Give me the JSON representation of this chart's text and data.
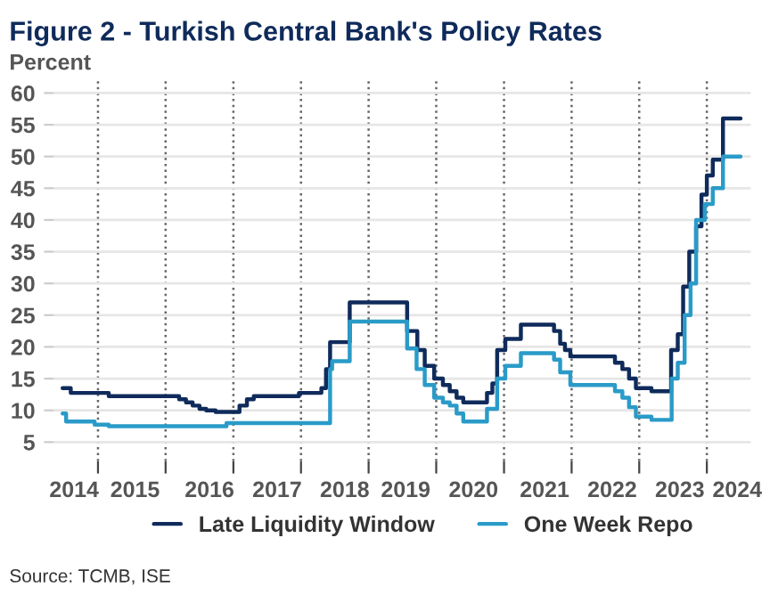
{
  "chart_data": {
    "type": "step",
    "title": "Figure 2 - Turkish Central Bank's Policy Rates",
    "subtitle": "Percent",
    "xlim": [
      "2014-05-08",
      "2024-08-25"
    ],
    "ylim": [
      2,
      62
    ],
    "yticks": [
      5,
      10,
      15,
      20,
      25,
      30,
      35,
      40,
      45,
      50,
      55,
      60
    ],
    "xticks": [
      {
        "value": "2015-01-01",
        "label": null
      },
      {
        "value": "2016-01-01",
        "label": null
      },
      {
        "value": "2017-01-01",
        "label": null
      },
      {
        "value": "2018-01-01",
        "label": null
      },
      {
        "value": "2019-01-01",
        "label": null
      },
      {
        "value": "2020-01-01",
        "label": null
      },
      {
        "value": "2021-01-01",
        "label": null
      },
      {
        "value": "2022-01-01",
        "label": null
      },
      {
        "value": "2023-01-01",
        "label": null
      },
      {
        "value": "2024-01-01",
        "label": null
      },
      {
        "value": "2014-08-25",
        "label": "2014"
      },
      {
        "value": "2015-07-20",
        "label": "2015"
      },
      {
        "value": "2016-08-25",
        "label": "2016"
      },
      {
        "value": "2017-08-25",
        "label": "2017"
      },
      {
        "value": "2018-08-25",
        "label": "2018"
      },
      {
        "value": "2019-07-20",
        "label": "2019"
      },
      {
        "value": "2020-07-20",
        "label": "2020"
      },
      {
        "value": "2021-08-08",
        "label": "2021"
      },
      {
        "value": "2022-08-08",
        "label": "2022"
      },
      {
        "value": "2023-08-08",
        "label": "2023"
      },
      {
        "value": "2024-06-13",
        "label": "2024"
      }
    ],
    "grid": true,
    "legend": "bottom",
    "line_style": "solid",
    "marker": "none",
    "series": [
      {
        "name": "Late Liquidity Window",
        "color": "#0f2b5b",
        "x": [
          "2014-06-24",
          "2014-08-07",
          "2015-02-28",
          "2016-03-14",
          "2016-04-20",
          "2016-05-26",
          "2016-07-02",
          "2016-08-07",
          "2016-09-27",
          "2017-02-03",
          "2017-03-15",
          "2017-04-21",
          "2017-12-21",
          "2018-04-21",
          "2018-05-16",
          "2018-06-07",
          "2018-09-21",
          "2019-07-28",
          "2019-09-21",
          "2019-10-31",
          "2019-12-21",
          "2020-02-06",
          "2020-03-14",
          "2020-04-20",
          "2020-05-26",
          "2020-10-01",
          "2020-10-30",
          "2020-11-25",
          "2021-01-08",
          "2021-04-02",
          "2021-09-28",
          "2021-10-31",
          "2021-11-26",
          "2021-12-25",
          "2022-08-23",
          "2022-10-02",
          "2022-11-07",
          "2022-12-14",
          "2023-03-08",
          "2023-06-22",
          "2023-07-28",
          "2023-08-26",
          "2023-09-28",
          "2023-11-04",
          "2023-12-03",
          "2024-01-01",
          "2024-02-02",
          "2024-03-28",
          "2024-07-01"
        ],
        "values": [
          13.5,
          12.75,
          12.25,
          11.75,
          11.25,
          10.75,
          10.25,
          10.0,
          9.75,
          10.75,
          11.75,
          12.25,
          12.75,
          13.5,
          16.5,
          20.75,
          27.0,
          22.5,
          19.5,
          17.0,
          15.0,
          14.0,
          13.0,
          12.0,
          11.25,
          12.75,
          14.25,
          19.5,
          21.25,
          23.5,
          22.5,
          20.5,
          19.5,
          18.5,
          17.5,
          16.5,
          15.0,
          13.5,
          13.0,
          19.5,
          22.0,
          29.5,
          35.0,
          39.0,
          44.0,
          47.0,
          49.5,
          56.0,
          56.0
        ]
      },
      {
        "name": "One Week Repo",
        "color": "#2a9bc8",
        "x": [
          "2014-06-24",
          "2014-07-13",
          "2014-12-14",
          "2015-02-28",
          "2016-11-25",
          "2018-06-07",
          "2018-06-18",
          "2018-09-21",
          "2019-07-28",
          "2019-09-17",
          "2019-10-31",
          "2019-12-21",
          "2020-02-06",
          "2020-03-14",
          "2020-04-20",
          "2020-05-26",
          "2020-10-01",
          "2020-11-25",
          "2021-01-08",
          "2021-04-02",
          "2021-09-28",
          "2021-10-31",
          "2021-12-25",
          "2022-08-23",
          "2022-10-02",
          "2022-11-07",
          "2022-12-14",
          "2023-03-08",
          "2023-06-25",
          "2023-07-28",
          "2023-09-03",
          "2023-10-05",
          "2023-11-04",
          "2023-12-21",
          "2024-02-02",
          "2024-03-28",
          "2024-07-01"
        ],
        "values": [
          9.5,
          8.25,
          7.75,
          7.5,
          8.0,
          16.5,
          17.75,
          24.0,
          19.75,
          16.5,
          14.0,
          12.0,
          11.25,
          10.75,
          9.5,
          8.25,
          10.25,
          15.0,
          17.0,
          19.0,
          18.0,
          16.0,
          14.0,
          13.0,
          12.0,
          10.5,
          9.0,
          8.5,
          15.0,
          17.5,
          25.0,
          30.0,
          40.0,
          42.5,
          45.0,
          50.0,
          50.0
        ]
      }
    ],
    "annotations": [
      "Source: TCMB, ISE"
    ]
  }
}
